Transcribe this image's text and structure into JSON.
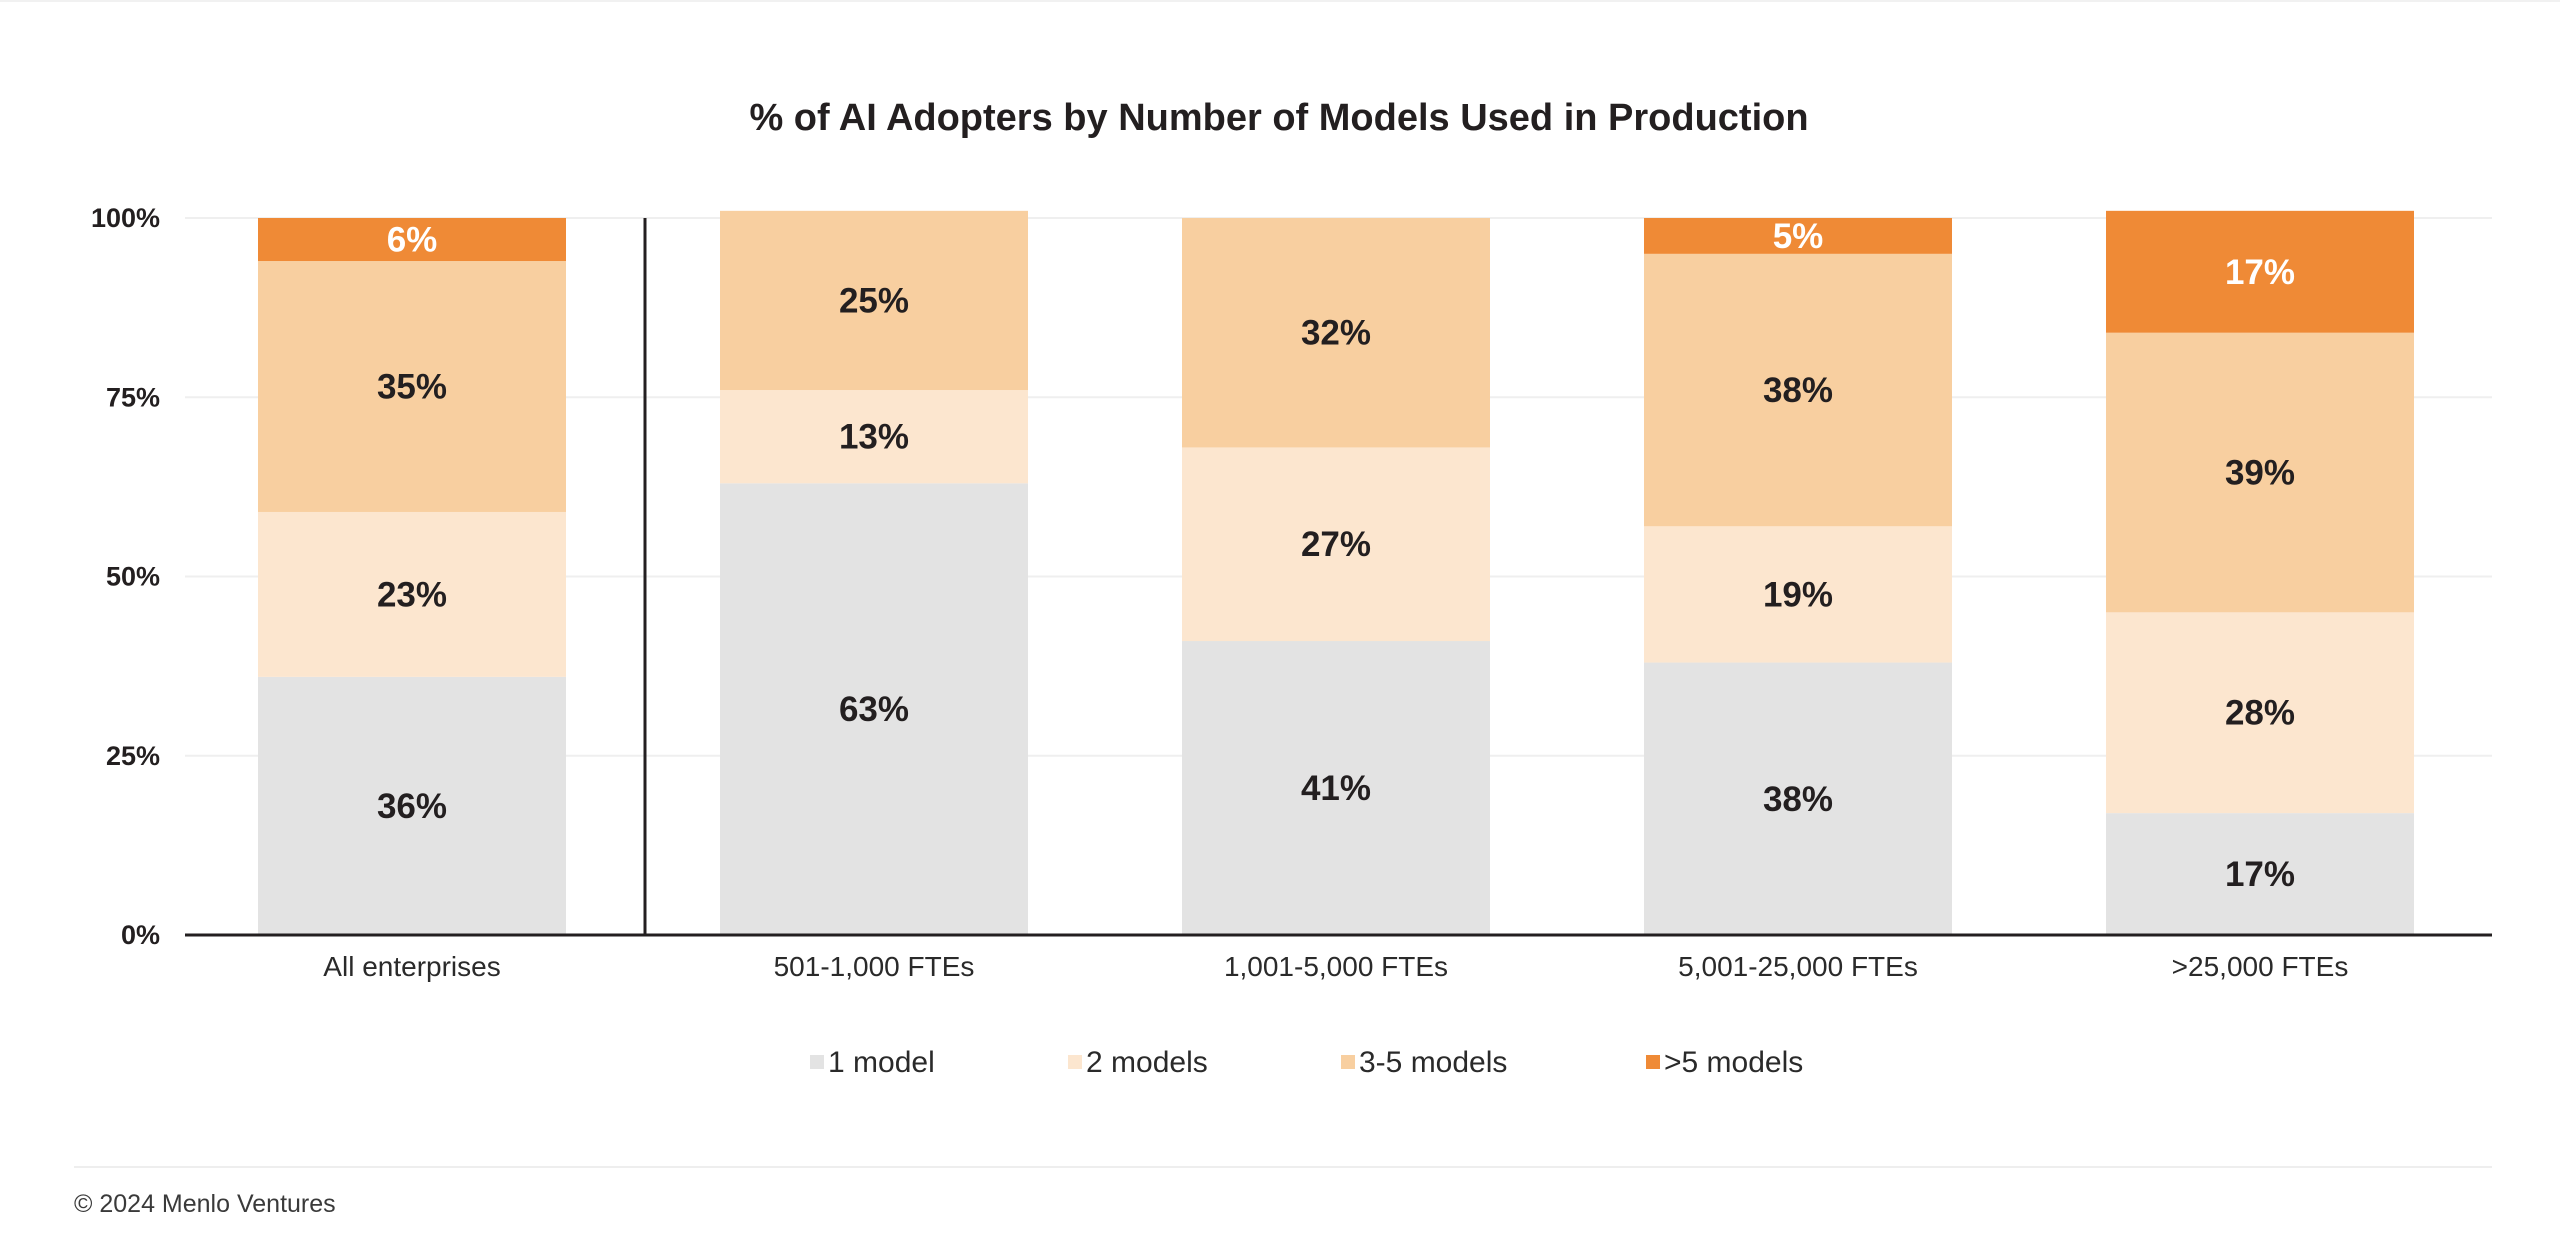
{
  "chart_data": {
    "type": "bar",
    "stacked": true,
    "title": "% of AI Adopters by Number of Models Used in Production",
    "categories": [
      "All enterprises",
      "501-1,000 FTEs",
      "1,001-5,000 FTEs",
      "5,001-25,000 FTEs",
      ">25,000 FTEs"
    ],
    "series": [
      {
        "name": "1 model",
        "color": "#e3e3e3",
        "label_color": "#231f20",
        "values": [
          36,
          63,
          41,
          38,
          17
        ]
      },
      {
        "name": "2 models",
        "color": "#fce6cf",
        "label_color": "#231f20",
        "values": [
          23,
          13,
          27,
          19,
          28
        ]
      },
      {
        "name": "3-5 models",
        "color": "#f8cfa0",
        "label_color": "#231f20",
        "values": [
          35,
          25,
          32,
          38,
          39
        ]
      },
      {
        "name": ">5 models",
        "color": "#ef8a36",
        "label_color": "#ffffff",
        "values": [
          6,
          0,
          0,
          5,
          17
        ]
      }
    ],
    "value_labels": [
      [
        "36%",
        "63%",
        "41%",
        "38%",
        "17%"
      ],
      [
        "23%",
        "13%",
        "27%",
        "19%",
        "28%"
      ],
      [
        "35%",
        "25%",
        "32%",
        "38%",
        "39%"
      ],
      [
        "6%",
        "",
        "",
        "5%",
        "17%"
      ]
    ],
    "yticks": [
      0,
      25,
      50,
      75,
      100
    ],
    "ytick_labels": [
      "0%",
      "25%",
      "50%",
      "75%",
      "100%"
    ],
    "ylim": [
      0,
      100
    ],
    "xlabel": "",
    "ylabel": "",
    "legend_position": "bottom-center",
    "grid": true,
    "separator_after_category": 0
  },
  "footer": {
    "copyright": "© 2024 Menlo Ventures"
  }
}
